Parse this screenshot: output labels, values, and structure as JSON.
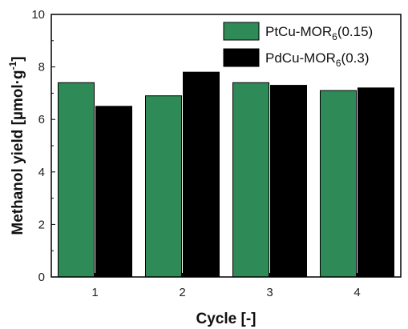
{
  "chart_data": {
    "type": "bar",
    "categories": [
      "1",
      "2",
      "3",
      "4"
    ],
    "series": [
      {
        "name": "PtCu-MOR6(0.15)",
        "label_main": "PtCu-MOR",
        "label_sub": "6",
        "label_tail": "(0.15)",
        "color": "#2e8b57",
        "values": [
          7.4,
          6.9,
          7.4,
          7.1
        ]
      },
      {
        "name": "PdCu-MOR6(0.3)",
        "label_main": "PdCu-MOR",
        "label_sub": "6",
        "label_tail": "(0.3)",
        "color": "#000000",
        "values": [
          6.5,
          7.8,
          7.3,
          7.2
        ]
      }
    ],
    "xlabel": "Cycle [-]",
    "ylabel_main": "Methanol yield [µmol·g",
    "ylabel_sup": "-1",
    "ylabel_tail": "]",
    "ylim": [
      0,
      10
    ],
    "yticks": [
      "0",
      "2",
      "4",
      "6",
      "8",
      "10"
    ],
    "grid": false,
    "legend_position": "top-right"
  }
}
